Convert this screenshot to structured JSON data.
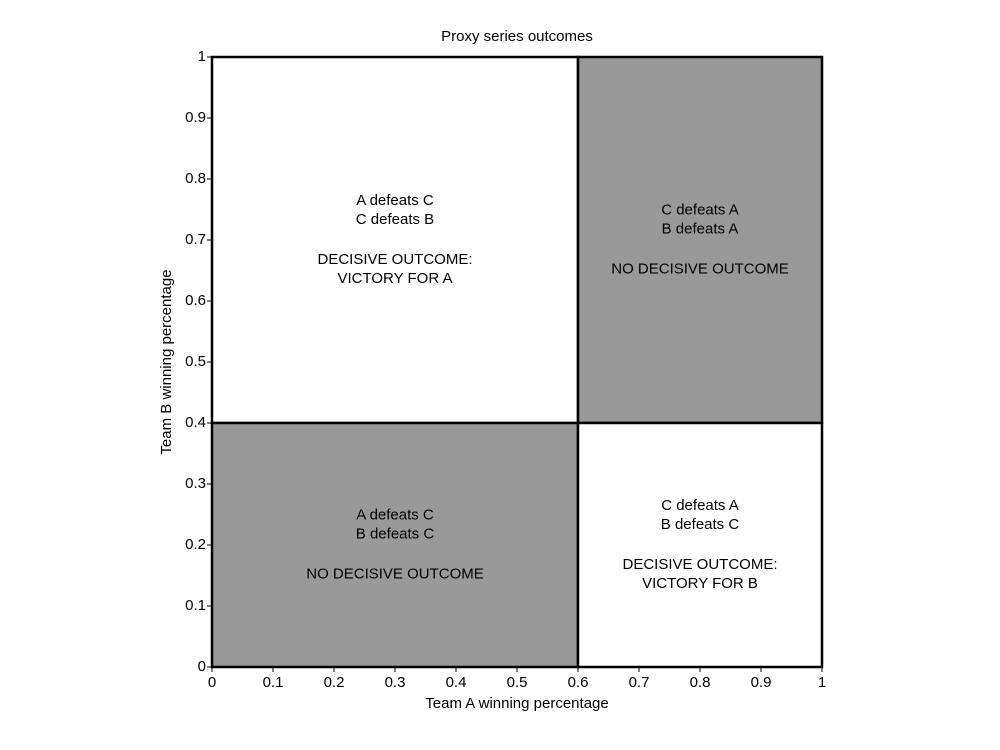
{
  "chart_data": {
    "type": "regions",
    "title": "Proxy series outcomes",
    "xlabel": "Team A winning percentage",
    "ylabel": "Team B winning percentage",
    "xlim": [
      0,
      1
    ],
    "ylim": [
      0,
      1
    ],
    "xticks": [
      0,
      0.1,
      0.2,
      0.3,
      0.4,
      0.5,
      0.6,
      0.7,
      0.8,
      0.9,
      1
    ],
    "yticks": [
      0,
      0.1,
      0.2,
      0.3,
      0.4,
      0.5,
      0.6,
      0.7,
      0.8,
      0.9,
      1
    ],
    "regions": [
      {
        "x": [
          0,
          0.6
        ],
        "y": [
          0.4,
          1
        ],
        "color": "#ffffff",
        "lines": [
          "A defeats C",
          "C defeats B"
        ],
        "outcome": [
          "DECISIVE OUTCOME:",
          "VICTORY FOR A"
        ]
      },
      {
        "x": [
          0.6,
          1
        ],
        "y": [
          0.4,
          1
        ],
        "color": "#999999",
        "lines": [
          "C defeats A",
          "B defeats A"
        ],
        "outcome": [
          "NO DECISIVE OUTCOME"
        ]
      },
      {
        "x": [
          0,
          0.6
        ],
        "y": [
          0,
          0.4
        ],
        "color": "#999999",
        "lines": [
          "A defeats C",
          "B defeats C"
        ],
        "outcome": [
          "NO DECISIVE OUTCOME"
        ]
      },
      {
        "x": [
          0.6,
          1
        ],
        "y": [
          0,
          0.4
        ],
        "color": "#ffffff",
        "lines": [
          "C defeats A",
          "B defeats C"
        ],
        "outcome": [
          "DECISIVE OUTCOME:",
          "VICTORY FOR B"
        ]
      }
    ]
  }
}
